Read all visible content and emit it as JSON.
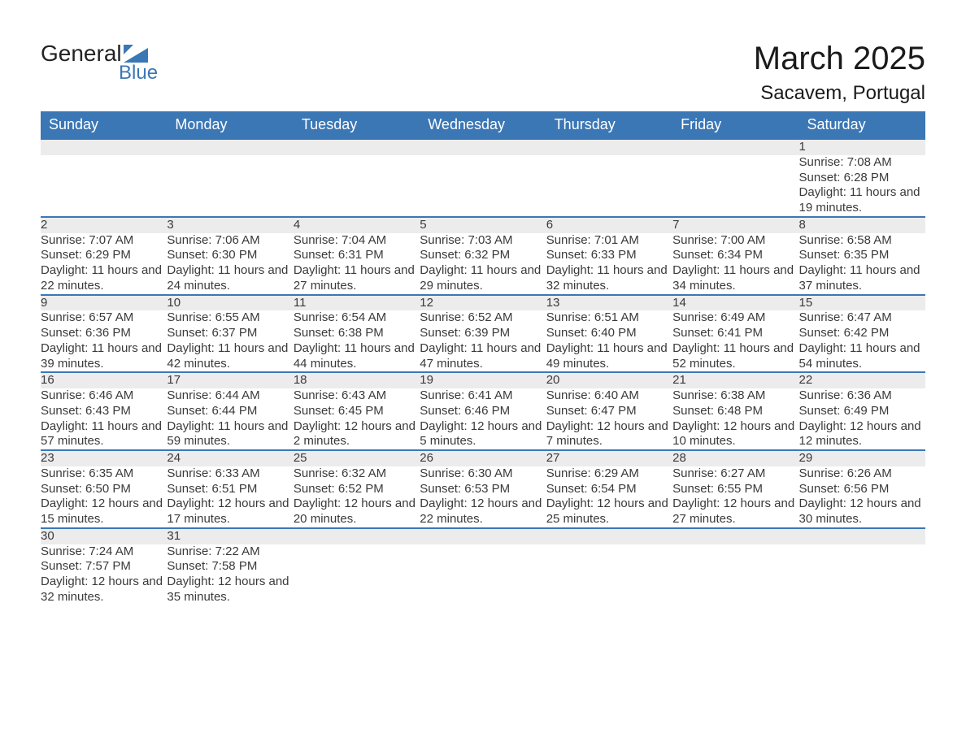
{
  "logo": {
    "text1": "General",
    "text2": "Blue",
    "shape_color": "#3b77b5",
    "text1_color": "#222222"
  },
  "title": "March 2025",
  "location": "Sacavem, Portugal",
  "colors": {
    "header_bg": "#3b77b5",
    "header_text": "#ffffff",
    "daynum_bg": "#ececec",
    "text": "#3a3a3a",
    "row_border": "#3b77b5",
    "page_bg": "#ffffff"
  },
  "fonts": {
    "title_size": 40,
    "location_size": 24,
    "header_size": 18,
    "daynum_size": 18,
    "body_size": 15
  },
  "weekdays": [
    "Sunday",
    "Monday",
    "Tuesday",
    "Wednesday",
    "Thursday",
    "Friday",
    "Saturday"
  ],
  "labels": {
    "sunrise": "Sunrise: ",
    "sunset": "Sunset: ",
    "daylight": "Daylight: "
  },
  "weeks": [
    [
      null,
      null,
      null,
      null,
      null,
      null,
      {
        "n": "1",
        "sr": "7:08 AM",
        "ss": "6:28 PM",
        "dl": "11 hours and 19 minutes."
      }
    ],
    [
      {
        "n": "2",
        "sr": "7:07 AM",
        "ss": "6:29 PM",
        "dl": "11 hours and 22 minutes."
      },
      {
        "n": "3",
        "sr": "7:06 AM",
        "ss": "6:30 PM",
        "dl": "11 hours and 24 minutes."
      },
      {
        "n": "4",
        "sr": "7:04 AM",
        "ss": "6:31 PM",
        "dl": "11 hours and 27 minutes."
      },
      {
        "n": "5",
        "sr": "7:03 AM",
        "ss": "6:32 PM",
        "dl": "11 hours and 29 minutes."
      },
      {
        "n": "6",
        "sr": "7:01 AM",
        "ss": "6:33 PM",
        "dl": "11 hours and 32 minutes."
      },
      {
        "n": "7",
        "sr": "7:00 AM",
        "ss": "6:34 PM",
        "dl": "11 hours and 34 minutes."
      },
      {
        "n": "8",
        "sr": "6:58 AM",
        "ss": "6:35 PM",
        "dl": "11 hours and 37 minutes."
      }
    ],
    [
      {
        "n": "9",
        "sr": "6:57 AM",
        "ss": "6:36 PM",
        "dl": "11 hours and 39 minutes."
      },
      {
        "n": "10",
        "sr": "6:55 AM",
        "ss": "6:37 PM",
        "dl": "11 hours and 42 minutes."
      },
      {
        "n": "11",
        "sr": "6:54 AM",
        "ss": "6:38 PM",
        "dl": "11 hours and 44 minutes."
      },
      {
        "n": "12",
        "sr": "6:52 AM",
        "ss": "6:39 PM",
        "dl": "11 hours and 47 minutes."
      },
      {
        "n": "13",
        "sr": "6:51 AM",
        "ss": "6:40 PM",
        "dl": "11 hours and 49 minutes."
      },
      {
        "n": "14",
        "sr": "6:49 AM",
        "ss": "6:41 PM",
        "dl": "11 hours and 52 minutes."
      },
      {
        "n": "15",
        "sr": "6:47 AM",
        "ss": "6:42 PM",
        "dl": "11 hours and 54 minutes."
      }
    ],
    [
      {
        "n": "16",
        "sr": "6:46 AM",
        "ss": "6:43 PM",
        "dl": "11 hours and 57 minutes."
      },
      {
        "n": "17",
        "sr": "6:44 AM",
        "ss": "6:44 PM",
        "dl": "11 hours and 59 minutes."
      },
      {
        "n": "18",
        "sr": "6:43 AM",
        "ss": "6:45 PM",
        "dl": "12 hours and 2 minutes."
      },
      {
        "n": "19",
        "sr": "6:41 AM",
        "ss": "6:46 PM",
        "dl": "12 hours and 5 minutes."
      },
      {
        "n": "20",
        "sr": "6:40 AM",
        "ss": "6:47 PM",
        "dl": "12 hours and 7 minutes."
      },
      {
        "n": "21",
        "sr": "6:38 AM",
        "ss": "6:48 PM",
        "dl": "12 hours and 10 minutes."
      },
      {
        "n": "22",
        "sr": "6:36 AM",
        "ss": "6:49 PM",
        "dl": "12 hours and 12 minutes."
      }
    ],
    [
      {
        "n": "23",
        "sr": "6:35 AM",
        "ss": "6:50 PM",
        "dl": "12 hours and 15 minutes."
      },
      {
        "n": "24",
        "sr": "6:33 AM",
        "ss": "6:51 PM",
        "dl": "12 hours and 17 minutes."
      },
      {
        "n": "25",
        "sr": "6:32 AM",
        "ss": "6:52 PM",
        "dl": "12 hours and 20 minutes."
      },
      {
        "n": "26",
        "sr": "6:30 AM",
        "ss": "6:53 PM",
        "dl": "12 hours and 22 minutes."
      },
      {
        "n": "27",
        "sr": "6:29 AM",
        "ss": "6:54 PM",
        "dl": "12 hours and 25 minutes."
      },
      {
        "n": "28",
        "sr": "6:27 AM",
        "ss": "6:55 PM",
        "dl": "12 hours and 27 minutes."
      },
      {
        "n": "29",
        "sr": "6:26 AM",
        "ss": "6:56 PM",
        "dl": "12 hours and 30 minutes."
      }
    ],
    [
      {
        "n": "30",
        "sr": "7:24 AM",
        "ss": "7:57 PM",
        "dl": "12 hours and 32 minutes."
      },
      {
        "n": "31",
        "sr": "7:22 AM",
        "ss": "7:58 PM",
        "dl": "12 hours and 35 minutes."
      },
      null,
      null,
      null,
      null,
      null
    ]
  ]
}
